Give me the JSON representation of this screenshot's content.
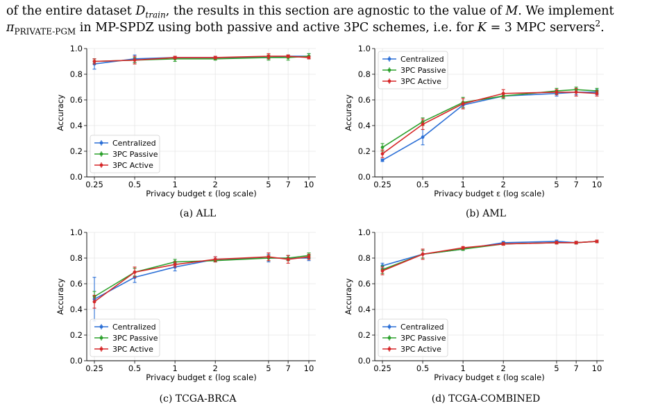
{
  "body_text": {
    "line1_a": "of the entire dataset ",
    "line1_var": "D",
    "line1_sub": "train",
    "line1_b": ", the results in this section are agnostic to the value of ",
    "line1_m": "M",
    "line1_c": ". We implement",
    "line2_pi": "π",
    "line2_sub": "PRIVATE-PGM",
    "line2_b": " in MP-SPDZ using both passive and active 3PC schemes, i.e. for ",
    "line2_k": "K",
    "line2_c": " = 3 MPC servers",
    "line2_sup": "2",
    "line2_end": "."
  },
  "colors": {
    "centralized": "#2b6fd6",
    "passive": "#2ca02c",
    "active": "#d62728",
    "grid": "#e6e6e6"
  },
  "chart_data": [
    {
      "type": "line",
      "caption": "(a) ALL",
      "xlabel": "Privacy budget ε (log scale)",
      "ylabel": "Accuracy",
      "x_scale": "log",
      "x": [
        0.25,
        0.5,
        1,
        2,
        5,
        7,
        10
      ],
      "x_tick_labels": [
        "0.25",
        "0.5",
        "1",
        "2",
        "5",
        "7",
        "10"
      ],
      "ylim": [
        0.0,
        1.0
      ],
      "y_ticks": [
        "0.0",
        "0.2",
        "0.4",
        "0.6",
        "0.8",
        "1.0"
      ],
      "grid": true,
      "legend_position": "lower-left",
      "series": [
        {
          "name": "Centralized",
          "values": [
            0.88,
            0.92,
            0.93,
            0.93,
            0.93,
            0.94,
            0.94
          ],
          "errors": [
            0.04,
            0.03,
            0.01,
            0.01,
            0.01,
            0.01,
            0.02
          ]
        },
        {
          "name": "3PC Passive",
          "values": [
            0.9,
            0.91,
            0.92,
            0.92,
            0.93,
            0.93,
            0.94
          ],
          "errors": [
            0.02,
            0.02,
            0.02,
            0.01,
            0.02,
            0.02,
            0.02
          ]
        },
        {
          "name": "3PC Active",
          "values": [
            0.9,
            0.91,
            0.93,
            0.93,
            0.94,
            0.94,
            0.93
          ],
          "errors": [
            0.02,
            0.03,
            0.01,
            0.01,
            0.02,
            0.01,
            0.01
          ]
        }
      ]
    },
    {
      "type": "line",
      "caption": "(b) AML",
      "xlabel": "Privacy budget ε (log scale)",
      "ylabel": "Accuracy",
      "x_scale": "log",
      "x": [
        0.25,
        0.5,
        1,
        2,
        5,
        7,
        10
      ],
      "x_tick_labels": [
        "0.25",
        "0.5",
        "1",
        "2",
        "5",
        "7",
        "10"
      ],
      "ylim": [
        0.0,
        1.0
      ],
      "y_ticks": [
        "0.0",
        "0.2",
        "0.4",
        "0.6",
        "0.8",
        "1.0"
      ],
      "grid": true,
      "legend_position": "upper-left",
      "series": [
        {
          "name": "Centralized",
          "values": [
            0.13,
            0.31,
            0.56,
            0.63,
            0.65,
            0.66,
            0.66
          ],
          "errors": [
            0.01,
            0.06,
            0.02,
            0.02,
            0.02,
            0.02,
            0.02
          ]
        },
        {
          "name": "3PC Passive",
          "values": [
            0.23,
            0.43,
            0.58,
            0.63,
            0.67,
            0.68,
            0.67
          ],
          "errors": [
            0.03,
            0.03,
            0.04,
            0.02,
            0.02,
            0.02,
            0.02
          ]
        },
        {
          "name": "3PC Active",
          "values": [
            0.18,
            0.41,
            0.57,
            0.65,
            0.66,
            0.66,
            0.65
          ],
          "errors": [
            0.03,
            0.04,
            0.04,
            0.03,
            0.02,
            0.03,
            0.02
          ]
        }
      ]
    },
    {
      "type": "line",
      "caption": "(c) TCGA-BRCA",
      "xlabel": "Privacy budget ε (log scale)",
      "ylabel": "Accuracy",
      "x_scale": "log",
      "x": [
        0.25,
        0.5,
        1,
        2,
        5,
        7,
        10
      ],
      "x_tick_labels": [
        "0.25",
        "0.5",
        "1",
        "2",
        "5",
        "7",
        "10"
      ],
      "ylim": [
        0.0,
        1.0
      ],
      "y_ticks": [
        "0.0",
        "0.2",
        "0.4",
        "0.6",
        "0.8",
        "1.0"
      ],
      "grid": true,
      "legend_position": "lower-left",
      "series": [
        {
          "name": "Centralized",
          "values": [
            0.48,
            0.65,
            0.73,
            0.79,
            0.8,
            0.8,
            0.8
          ],
          "errors": [
            0.17,
            0.04,
            0.03,
            0.02,
            0.03,
            0.02,
            0.02
          ]
        },
        {
          "name": "3PC Passive",
          "values": [
            0.5,
            0.69,
            0.77,
            0.78,
            0.8,
            0.8,
            0.82
          ],
          "errors": [
            0.04,
            0.03,
            0.02,
            0.01,
            0.02,
            0.02,
            0.02
          ]
        },
        {
          "name": "3PC Active",
          "values": [
            0.46,
            0.69,
            0.75,
            0.79,
            0.81,
            0.79,
            0.81
          ],
          "errors": [
            0.05,
            0.04,
            0.02,
            0.02,
            0.03,
            0.03,
            0.02
          ]
        }
      ]
    },
    {
      "type": "line",
      "caption": "(d) TCGA-COMBINED",
      "xlabel": "Privacy budget ε (log scale)",
      "ylabel": "Accuracy",
      "x_scale": "log",
      "x": [
        0.25,
        0.5,
        1,
        2,
        5,
        7,
        10
      ],
      "x_tick_labels": [
        "0.25",
        "0.5",
        "1",
        "2",
        "5",
        "7",
        "10"
      ],
      "ylim": [
        0.0,
        1.0
      ],
      "y_ticks": [
        "0.0",
        "0.2",
        "0.4",
        "0.6",
        "0.8",
        "1.0"
      ],
      "grid": true,
      "legend_position": "lower-left",
      "series": [
        {
          "name": "Centralized",
          "values": [
            0.74,
            0.83,
            0.87,
            0.92,
            0.93,
            0.92,
            0.93
          ],
          "errors": [
            0.02,
            0.03,
            0.01,
            0.01,
            0.01,
            0.01,
            0.01
          ]
        },
        {
          "name": "3PC Passive",
          "values": [
            0.71,
            0.83,
            0.87,
            0.91,
            0.92,
            0.92,
            0.93
          ],
          "errors": [
            0.03,
            0.03,
            0.01,
            0.01,
            0.01,
            0.01,
            0.01
          ]
        },
        {
          "name": "3PC Active",
          "values": [
            0.7,
            0.83,
            0.88,
            0.91,
            0.92,
            0.92,
            0.93
          ],
          "errors": [
            0.03,
            0.04,
            0.01,
            0.01,
            0.01,
            0.01,
            0.01
          ]
        }
      ]
    }
  ]
}
